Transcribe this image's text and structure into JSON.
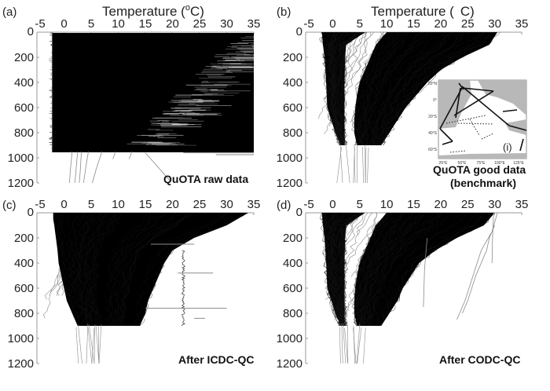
{
  "figure": {
    "colors": {
      "profile_dense": "#000000",
      "profile_outlier": "#8a8a8a",
      "axis": "#999999",
      "land": "#b8b8b8"
    },
    "shared_axes": {
      "xlabel_with_unit": "Temperature (°C)",
      "x_ticks": [
        "-5",
        "0",
        "5",
        "10",
        "15",
        "20",
        "25",
        "30",
        "35"
      ],
      "y_ticks": [
        "0",
        "200",
        "400",
        "600",
        "800",
        "1000",
        "1200"
      ]
    }
  },
  "chart_data": [
    {
      "type": "line",
      "panel": "(a)",
      "title": "",
      "xlabel": "Temperature (°C)",
      "xlabel_parts": {
        "base": "Temperature  (",
        "sup": "o",
        "unit": "C)"
      },
      "ylabel": "",
      "xlim": [
        -5,
        35
      ],
      "ylim": [
        1200,
        0
      ],
      "y_inverted": true,
      "x_axis_position": "top",
      "x_ticks": [
        -5,
        0,
        5,
        10,
        15,
        20,
        25,
        30,
        35
      ],
      "y_ticks": [
        0,
        200,
        400,
        600,
        800,
        1000,
        1200
      ],
      "annotation": "QuOTA raw data",
      "description": "Dense raw temperature profiles filling nearly the whole 0-35 C range from surface to ~950 m, with a few profiles extending to 1200 m",
      "envelope": {
        "depth": [
          0,
          950
        ],
        "t_min": -2.2,
        "t_max": 35
      },
      "outlier_profiles": [
        {
          "t": [
            1.5,
            1.2,
            1.0
          ],
          "depth": [
            950,
            1080,
            1200
          ]
        },
        {
          "t": [
            2.5,
            2.2,
            2.0
          ],
          "depth": [
            950,
            1100,
            1200
          ]
        },
        {
          "t": [
            3.2,
            3.0,
            2.8
          ],
          "depth": [
            950,
            1100,
            1200
          ]
        },
        {
          "t": [
            4.5,
            4.0,
            3.6
          ],
          "depth": [
            950,
            1080,
            1200
          ]
        },
        {
          "t": [
            7.0,
            6.0,
            5.2
          ],
          "depth": [
            950,
            1080,
            1200
          ]
        },
        {
          "t": [
            9.5,
            9.0
          ],
          "depth": [
            950,
            1010
          ]
        },
        {
          "t": [
            12.5,
            12.0
          ],
          "depth": [
            950,
            1010
          ]
        },
        {
          "t": [
            15.0,
            19.5
          ],
          "depth": [
            960,
            1180
          ]
        }
      ]
    },
    {
      "type": "line",
      "panel": "(b)",
      "title": "",
      "xlabel": "Temperature ( C)",
      "xlabel_parts": {
        "base": "Temperature  (",
        "sup": "",
        "unit": "C)"
      },
      "ylabel": "",
      "xlim": [
        -5,
        35
      ],
      "ylim": [
        1200,
        0
      ],
      "y_inverted": true,
      "x_axis_position": "top",
      "x_ticks": [
        -5,
        0,
        5,
        10,
        15,
        20,
        25,
        30,
        35
      ],
      "y_ticks": [
        0,
        200,
        400,
        600,
        800,
        1000,
        1200
      ],
      "annotation": "QuOTA good data (benchmark)",
      "annotation_lines": [
        "QuOTA good data",
        "(benchmark)"
      ],
      "description": "Benchmark profiles: a cold polar branch near 0-2 C and a warm branch decreasing from ~30 C at surface to ~5 C at 900 m",
      "bands": [
        {
          "name": "cold-branch",
          "depth": [
            0,
            100,
            200,
            400,
            600,
            800,
            900
          ],
          "t_left": [
            -2,
            -1.8,
            -1.5,
            -1.2,
            -1.0,
            0.5,
            1.5
          ],
          "t_right": [
            6,
            2.5,
            2.3,
            2.2,
            2.2,
            2.2,
            2.2
          ]
        },
        {
          "name": "warm-branch",
          "depth": [
            0,
            100,
            200,
            300,
            400,
            500,
            600,
            700,
            800,
            900
          ],
          "t_left": [
            10,
            8,
            7,
            6,
            5,
            4.5,
            4.2,
            4.0,
            4.0,
            4.5
          ],
          "t_right": [
            30.5,
            29,
            24,
            20,
            17.5,
            15.5,
            13.5,
            12,
            10.5,
            9
          ]
        }
      ],
      "inset_map": {
        "label": "(i)",
        "lat_ticks": [
          "20°N",
          "0°",
          "20°S",
          "40°S",
          "60°S"
        ],
        "lon_ticks": [
          "25°E",
          "50°E",
          "75°E",
          "100°E",
          "125°E"
        ],
        "region": "Indian Ocean"
      }
    },
    {
      "type": "line",
      "panel": "(c)",
      "title": "",
      "xlabel": "",
      "ylabel": "",
      "xlim": [
        -5,
        35
      ],
      "ylim": [
        1200,
        0
      ],
      "y_inverted": true,
      "x_axis_position": "top",
      "x_ticks": [
        -5,
        0,
        5,
        10,
        15,
        20,
        25,
        30,
        35
      ],
      "y_ticks": [
        0,
        200,
        400,
        600,
        800,
        1000,
        1200
      ],
      "annotation": "After ICDC-QC",
      "description": "Profiles after ICDC QC: broad filled envelope with spikes, a vertical outlier column near 22 C between 300-900 m",
      "bands": [
        {
          "name": "envelope",
          "depth": [
            0,
            50,
            100,
            200,
            300,
            400,
            500,
            600,
            700,
            800,
            900
          ],
          "t_left": [
            -2,
            -2,
            -1.8,
            -1.5,
            -1.2,
            -1,
            -0.5,
            0,
            0.5,
            1.5,
            2.5
          ],
          "t_right": [
            34,
            32,
            30,
            24,
            20,
            18.5,
            17.5,
            16.5,
            15.5,
            15,
            14
          ]
        }
      ],
      "vertical_outlier": {
        "t": 22,
        "depth": [
          300,
          900
        ]
      },
      "horizontal_spikes": [
        {
          "depth": 250,
          "t": [
            16,
            24
          ]
        },
        {
          "depth": 480,
          "t": [
            21,
            27.5
          ]
        },
        {
          "depth": 760,
          "t": [
            15,
            30
          ]
        },
        {
          "depth": 840,
          "t": [
            24,
            26
          ]
        }
      ]
    },
    {
      "type": "line",
      "panel": "(d)",
      "title": "",
      "xlabel": "",
      "ylabel": "",
      "xlim": [
        -5,
        35
      ],
      "ylim": [
        1200,
        0
      ],
      "y_inverted": true,
      "x_axis_position": "top",
      "x_ticks": [
        -5,
        0,
        5,
        10,
        15,
        20,
        25,
        30,
        35
      ],
      "y_ticks": [
        0,
        200,
        400,
        600,
        800,
        1000,
        1200
      ],
      "annotation": "After CODC-QC",
      "description": "Profiles after CODC QC: close to benchmark, two branches with a few remaining outlier profiles on the warm side",
      "bands": [
        {
          "name": "cold-branch",
          "depth": [
            0,
            100,
            200,
            400,
            600,
            800,
            900
          ],
          "t_left": [
            -2,
            -1.8,
            -1.5,
            -1.2,
            -1.0,
            0.5,
            1.5
          ],
          "t_right": [
            6,
            2.5,
            2.3,
            2.2,
            2.2,
            2.2,
            2.2
          ]
        },
        {
          "name": "warm-branch",
          "depth": [
            0,
            100,
            200,
            300,
            400,
            500,
            600,
            700,
            800,
            900
          ],
          "t_left": [
            10,
            8,
            7,
            6,
            5,
            4.5,
            4.2,
            4.0,
            4.0,
            4.5
          ],
          "t_right": [
            30,
            28,
            23,
            19,
            16,
            14.5,
            13,
            12,
            10.5,
            9
          ]
        }
      ],
      "outlier_profiles": [
        {
          "t": [
            30.5,
            29.5,
            27.5,
            26,
            24.5,
            23
          ],
          "depth": [
            0,
            150,
            300,
            500,
            700,
            850
          ]
        },
        {
          "t": [
            30,
            29,
            28.5,
            26.5,
            25,
            24
          ],
          "depth": [
            100,
            200,
            300,
            500,
            700,
            800
          ]
        },
        {
          "t": [
            29.8,
            29.6,
            29.5
          ],
          "depth": [
            0,
            200,
            400
          ]
        },
        {
          "t": [
            17.5,
            17.0,
            16.8
          ],
          "depth": [
            200,
            450,
            750
          ]
        }
      ]
    }
  ]
}
